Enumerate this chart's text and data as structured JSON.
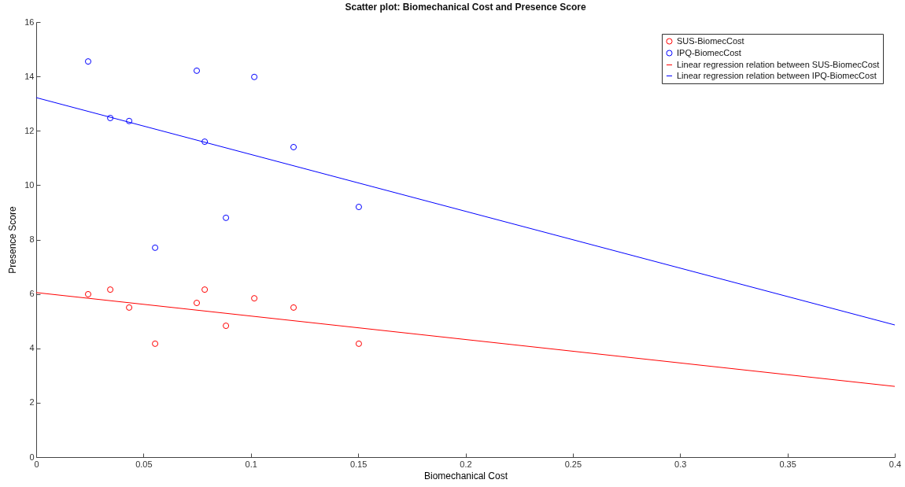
{
  "chart_data": {
    "type": "scatter",
    "title": "Scatter plot: Biomechanical Cost and Presence Score",
    "xlabel": "Biomechanical Cost",
    "ylabel": "Presence Score",
    "xlim": [
      0,
      0.4
    ],
    "xticks": [
      0,
      0.05,
      0.1,
      0.15,
      0.2,
      0.25,
      0.3,
      0.35,
      0.4
    ],
    "ylim": [
      0,
      16
    ],
    "yticks": [
      0,
      2,
      4,
      6,
      8,
      10,
      12,
      14,
      16
    ],
    "legend": "top right",
    "series": [
      {
        "name": "SUS-BiomecCost",
        "marker": "circle",
        "color": "#ff0000",
        "x": [
          0.0242,
          0.0345,
          0.0433,
          0.0554,
          0.0748,
          0.0785,
          0.0884,
          0.1016,
          0.1199,
          0.1503
        ],
        "values": [
          5.99,
          6.16,
          5.5,
          4.17,
          5.67,
          6.16,
          4.83,
          5.84,
          5.5,
          4.17
        ]
      },
      {
        "name": "IPQ-BiomecCost",
        "marker": "circle",
        "color": "#0000ff",
        "x": [
          0.0242,
          0.0345,
          0.0433,
          0.0554,
          0.0748,
          0.0785,
          0.0884,
          0.1016,
          0.1199,
          0.1503
        ],
        "values": [
          14.55,
          12.47,
          12.36,
          7.7,
          14.21,
          11.6,
          8.8,
          13.98,
          11.4,
          9.2
        ]
      },
      {
        "name": "Linear regression relation between SUS-BiomecCost",
        "type": "line",
        "marker": "none",
        "color": "#ff0000",
        "x": [
          0,
          0.4
        ],
        "values": [
          6.05,
          2.6
        ]
      },
      {
        "name": "Linear regression relation between IPQ-BiomecCost",
        "type": "line",
        "marker": "none",
        "color": "#0000ff",
        "x": [
          0,
          0.4
        ],
        "values": [
          13.22,
          4.86
        ]
      }
    ]
  }
}
